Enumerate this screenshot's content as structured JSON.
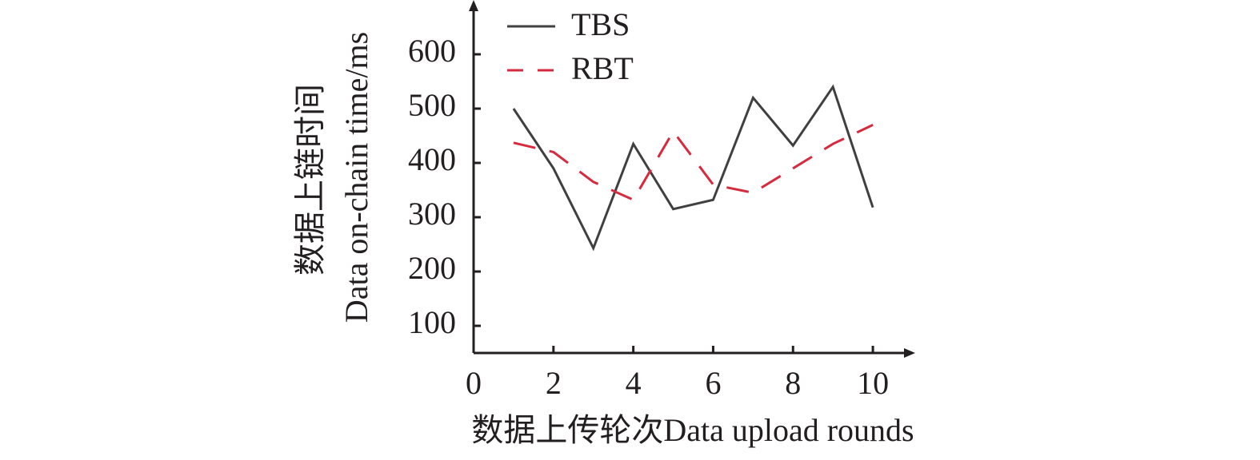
{
  "chart_data": {
    "type": "line",
    "xlabel": "数据上传轮次Data upload rounds",
    "ylabel": [
      "数据上链时间",
      "Data on-chain time/ms"
    ],
    "x": [
      1,
      2,
      3,
      4,
      5,
      6,
      7,
      8,
      9,
      10
    ],
    "series": [
      {
        "name": "TBS",
        "color": "#404040",
        "dash": false,
        "values": [
          500,
          390,
          243,
          435,
          315,
          332,
          520,
          432,
          540,
          318
        ]
      },
      {
        "name": "RBT",
        "color": "#d62b3e",
        "dash": true,
        "values": [
          437,
          420,
          365,
          332,
          458,
          360,
          345,
          390,
          435,
          470
        ]
      }
    ],
    "xlim": [
      0,
      11
    ],
    "xticks": [
      0,
      2,
      4,
      6,
      8,
      10
    ],
    "ylim": [
      50,
      700
    ],
    "yticks": [
      100,
      200,
      300,
      400,
      500,
      600
    ],
    "legend": "upper left",
    "grid": false
  }
}
